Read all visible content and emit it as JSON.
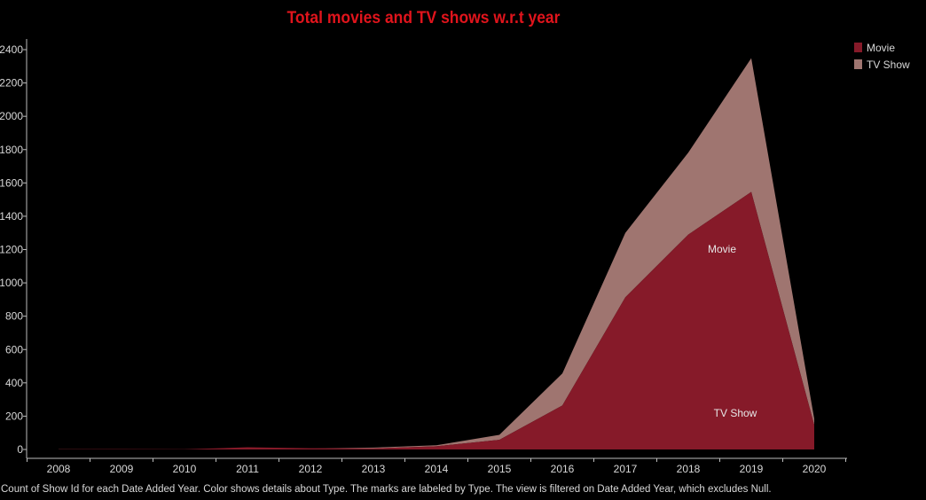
{
  "colors": {
    "background": "#000000",
    "title": "#e0141c",
    "axis": "#bdbdbd",
    "text": "#d8d8d8",
    "movie": "#861a29",
    "tv_show": "#9f7570"
  },
  "caption": "Count of Show Id for each Date Added Year.  Color shows details about Type.  The marks are labeled by Type. The view is filtered on Date Added Year, which excludes Null.",
  "chart_data": {
    "type": "area",
    "stacked": true,
    "title": "Total movies and TV shows w.r.t year",
    "xlabel": "",
    "ylabel": "",
    "categories": [
      "2008",
      "2009",
      "2010",
      "2011",
      "2012",
      "2013",
      "2014",
      "2015",
      "2016",
      "2017",
      "2018",
      "2019",
      "2020"
    ],
    "ylim": [
      0,
      2450
    ],
    "yticks": [
      0,
      200,
      400,
      600,
      800,
      1000,
      1200,
      1400,
      1600,
      1800,
      2000,
      2200,
      2400
    ],
    "grid": false,
    "legend_position": "top-right",
    "series": [
      {
        "name": "Movie",
        "label": "Movie",
        "color": "#861a29",
        "values": [
          1,
          2,
          1,
          13,
          7,
          6,
          19,
          58,
          264,
          913,
          1290,
          1546,
          147
        ]
      },
      {
        "name": "TV Show",
        "label": "TV Show",
        "color": "#9f7570",
        "values": [
          1,
          0,
          0,
          0,
          0,
          5,
          6,
          30,
          192,
          387,
          492,
          803,
          37
        ]
      }
    ]
  }
}
